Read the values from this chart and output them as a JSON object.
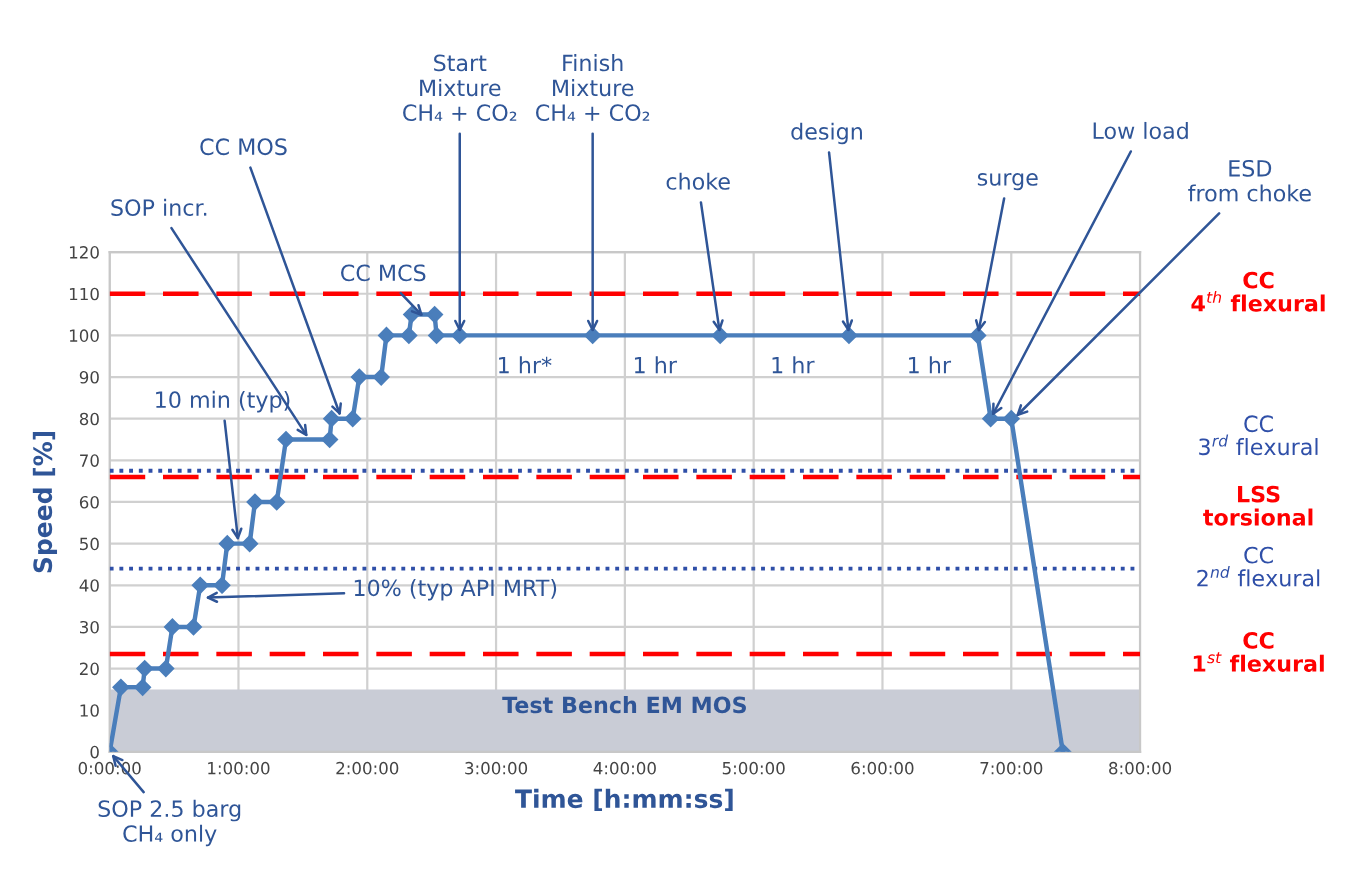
{
  "chart_data": {
    "type": "line",
    "xlabel": "Time [h:mm:ss]",
    "ylabel": "Speed [%]",
    "x": [
      0,
      0.087,
      0.256,
      0.272,
      0.436,
      0.487,
      0.651,
      0.703,
      0.872,
      0.913,
      1.087,
      1.128,
      1.297,
      1.369,
      1.708,
      1.723,
      1.887,
      1.938,
      2.108,
      2.149,
      2.323,
      2.344,
      2.523,
      2.538,
      2.718,
      3.75,
      4.74,
      5.74,
      6.74,
      6.84,
      7.0,
      7.4
    ],
    "series": [
      {
        "color": "#4a7ebb",
        "values": [
          0,
          15.5,
          15.5,
          20,
          20,
          30,
          30,
          40,
          40,
          50,
          50,
          60,
          60,
          75,
          75,
          80,
          80,
          90,
          90,
          100,
          100,
          105,
          105,
          100,
          100,
          100,
          100,
          100,
          100,
          80,
          80,
          0
        ]
      }
    ],
    "marker": "diamond",
    "line_style": "solid",
    "grid": true,
    "legend": false,
    "xlim": [
      0,
      8
    ],
    "ylim": [
      0,
      120
    ],
    "xticks": [
      {
        "value": 0,
        "label": "0:00:00"
      },
      {
        "value": 1,
        "label": "1:00:00"
      },
      {
        "value": 2,
        "label": "2:00:00"
      },
      {
        "value": 3,
        "label": "3:00:00"
      },
      {
        "value": 4,
        "label": "4:00:00"
      },
      {
        "value": 5,
        "label": "5:00:00"
      },
      {
        "value": 6,
        "label": "6:00:00"
      },
      {
        "value": 7,
        "label": "7:00:00"
      },
      {
        "value": 8,
        "label": "8:00:00"
      }
    ],
    "yticks": [
      0,
      10,
      20,
      30,
      40,
      50,
      60,
      70,
      80,
      90,
      100,
      110,
      120
    ],
    "ref_lines": [
      {
        "axis": "y",
        "value": 110,
        "label": "CC\n4$^{th}$ flexural",
        "color": "#ff0000",
        "line_style": "dashed"
      },
      {
        "axis": "y",
        "value": 67.5,
        "label": "CC\n3$^{rd}$ flexural",
        "color": "#2f4fa8",
        "line_style": "dotted"
      },
      {
        "axis": "y",
        "value": 66,
        "label": "LSS\ntorsional",
        "color": "#ff0000",
        "line_style": "dashed"
      },
      {
        "axis": "y",
        "value": 44,
        "label": "CC\n2$^{nd}$ flexural",
        "color": "#2f4fa8",
        "line_style": "dotted"
      },
      {
        "axis": "y",
        "value": 23.5,
        "label": "CC\n1$^{st}$ flexural",
        "color": "#ff0000",
        "line_style": "dashed"
      }
    ],
    "bands": [
      {
        "axis": "y",
        "from": 0,
        "to": 15,
        "label": "Test Bench EM MOS",
        "color": "#c9ccd6"
      }
    ],
    "annotations": [
      {
        "text": "SOP 2.5 barg\nCH₄ only",
        "x": 0,
        "y": 0
      },
      {
        "text": "10% (typ API MRT)",
        "x": 0.72,
        "y": 37
      },
      {
        "text": "10 min (typ)",
        "x": 1.0,
        "y": 50
      },
      {
        "text": "SOP incr.",
        "x": 1.55,
        "y": 75
      },
      {
        "text": "CC MOS",
        "x": 1.8,
        "y": 80
      },
      {
        "text": "CC MCS",
        "x": 2.45,
        "y": 104
      },
      {
        "text": "Start\nMixture\nCH₄ + CO₂",
        "x": 2.718,
        "y": 100
      },
      {
        "text": "Finish\nMixture\nCH₄ + CO₂",
        "x": 3.75,
        "y": 100
      },
      {
        "text": "choke",
        "x": 4.74,
        "y": 100
      },
      {
        "text": "design",
        "x": 5.74,
        "y": 100
      },
      {
        "text": "surge",
        "x": 6.74,
        "y": 100
      },
      {
        "text": "Low load",
        "x": 6.84,
        "y": 80
      },
      {
        "text": "ESD\nfrom choke",
        "x": 7.02,
        "y": 80
      },
      "1 hr*",
      "1 hr",
      "1 hr",
      "1 hr"
    ]
  }
}
